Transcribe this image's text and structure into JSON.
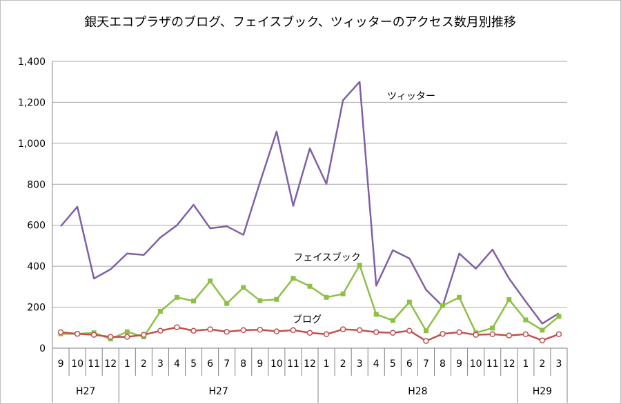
{
  "chart_data": {
    "type": "line",
    "title": "銀天エコプラザのブログ、フェイスブック、ツィッターのアクセス数月別推移",
    "xlabel": "",
    "ylabel": "",
    "ylim": [
      0,
      1400
    ],
    "yticks": [
      "0",
      "200",
      "400",
      "600",
      "800",
      "1,000",
      "1,200",
      "1,400"
    ],
    "grid": true,
    "legend": "none",
    "categories": [
      "9",
      "10",
      "11",
      "12",
      "1",
      "2",
      "3",
      "4",
      "5",
      "6",
      "7",
      "8",
      "9",
      "10",
      "11",
      "12",
      "1",
      "2",
      "3",
      "4",
      "5",
      "6",
      "7",
      "8",
      "9",
      "10",
      "11",
      "12",
      "1",
      "2",
      "3"
    ],
    "groups": [
      {
        "label": "H27",
        "start": 0,
        "end": 3
      },
      {
        "label": "H27",
        "start": 4,
        "end": 15
      },
      {
        "label": "H28",
        "start": 16,
        "end": 27
      },
      {
        "label": "H29",
        "start": 28,
        "end": 30
      }
    ],
    "series": [
      {
        "name": "ツィッター",
        "color": "#7f5fa8",
        "marker": "none",
        "values": [
          595,
          690,
          340,
          385,
          462,
          455,
          540,
          600,
          700,
          585,
          595,
          553,
          810,
          1057,
          695,
          975,
          802,
          1210,
          1300,
          305,
          478,
          438,
          285,
          205,
          462,
          388,
          481,
          340,
          228,
          120,
          170
        ]
      },
      {
        "name": "フェイスブック",
        "color": "#8dc045",
        "marker": "square",
        "values": [
          70,
          70,
          75,
          45,
          80,
          55,
          180,
          248,
          230,
          328,
          218,
          296,
          232,
          238,
          341,
          302,
          248,
          265,
          405,
          165,
          135,
          225,
          85,
          208,
          248,
          75,
          98,
          237,
          138,
          88,
          155
        ]
      },
      {
        "name": "ブログ",
        "color": "#c0504d",
        "marker": "circle",
        "values": [
          78,
          70,
          65,
          55,
          55,
          65,
          85,
          102,
          85,
          92,
          80,
          88,
          90,
          82,
          88,
          75,
          68,
          92,
          88,
          78,
          75,
          85,
          35,
          70,
          78,
          65,
          68,
          62,
          68,
          38,
          68
        ]
      }
    ]
  }
}
